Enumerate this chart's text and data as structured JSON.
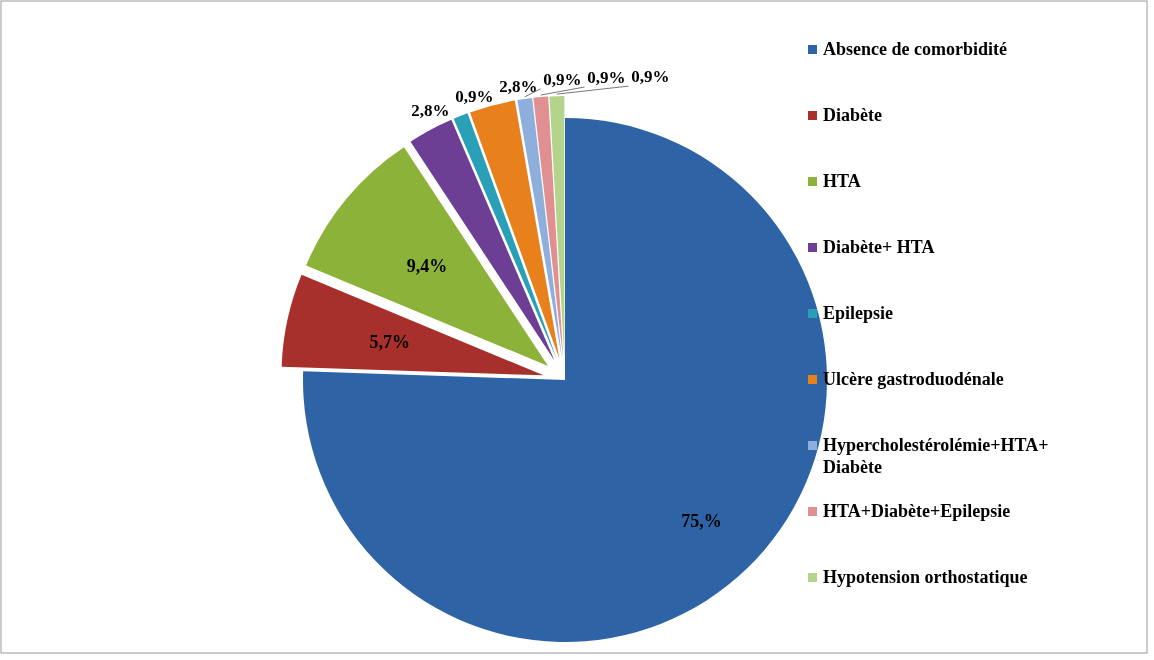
{
  "chart_data": {
    "type": "pie",
    "categories": [
      "Absence de comorbidité",
      "Diabète",
      "HTA",
      "Diabète+ HTA",
      "Epilepsie",
      "Ulcère gastroduodénale",
      "Hypercholestérolémie+HTA+ Diabète",
      "HTA+Diabète+Epilepsie",
      "Hypotension orthostatique"
    ],
    "values": [
      75.0,
      5.7,
      9.4,
      2.8,
      0.9,
      2.8,
      0.9,
      0.9,
      0.9
    ],
    "value_labels": [
      "75,%",
      "5,7%",
      "9,4%",
      "2,8%",
      "0,9%",
      "2,8%",
      "0,9%",
      "0,9%",
      "0,9%"
    ],
    "colors": [
      "#2e63a6",
      "#a8302c",
      "#8cb23a",
      "#6c3f94",
      "#2a9fb8",
      "#e8801c",
      "#8eaedb",
      "#e09090",
      "#b3d48a"
    ],
    "legend": "right"
  }
}
